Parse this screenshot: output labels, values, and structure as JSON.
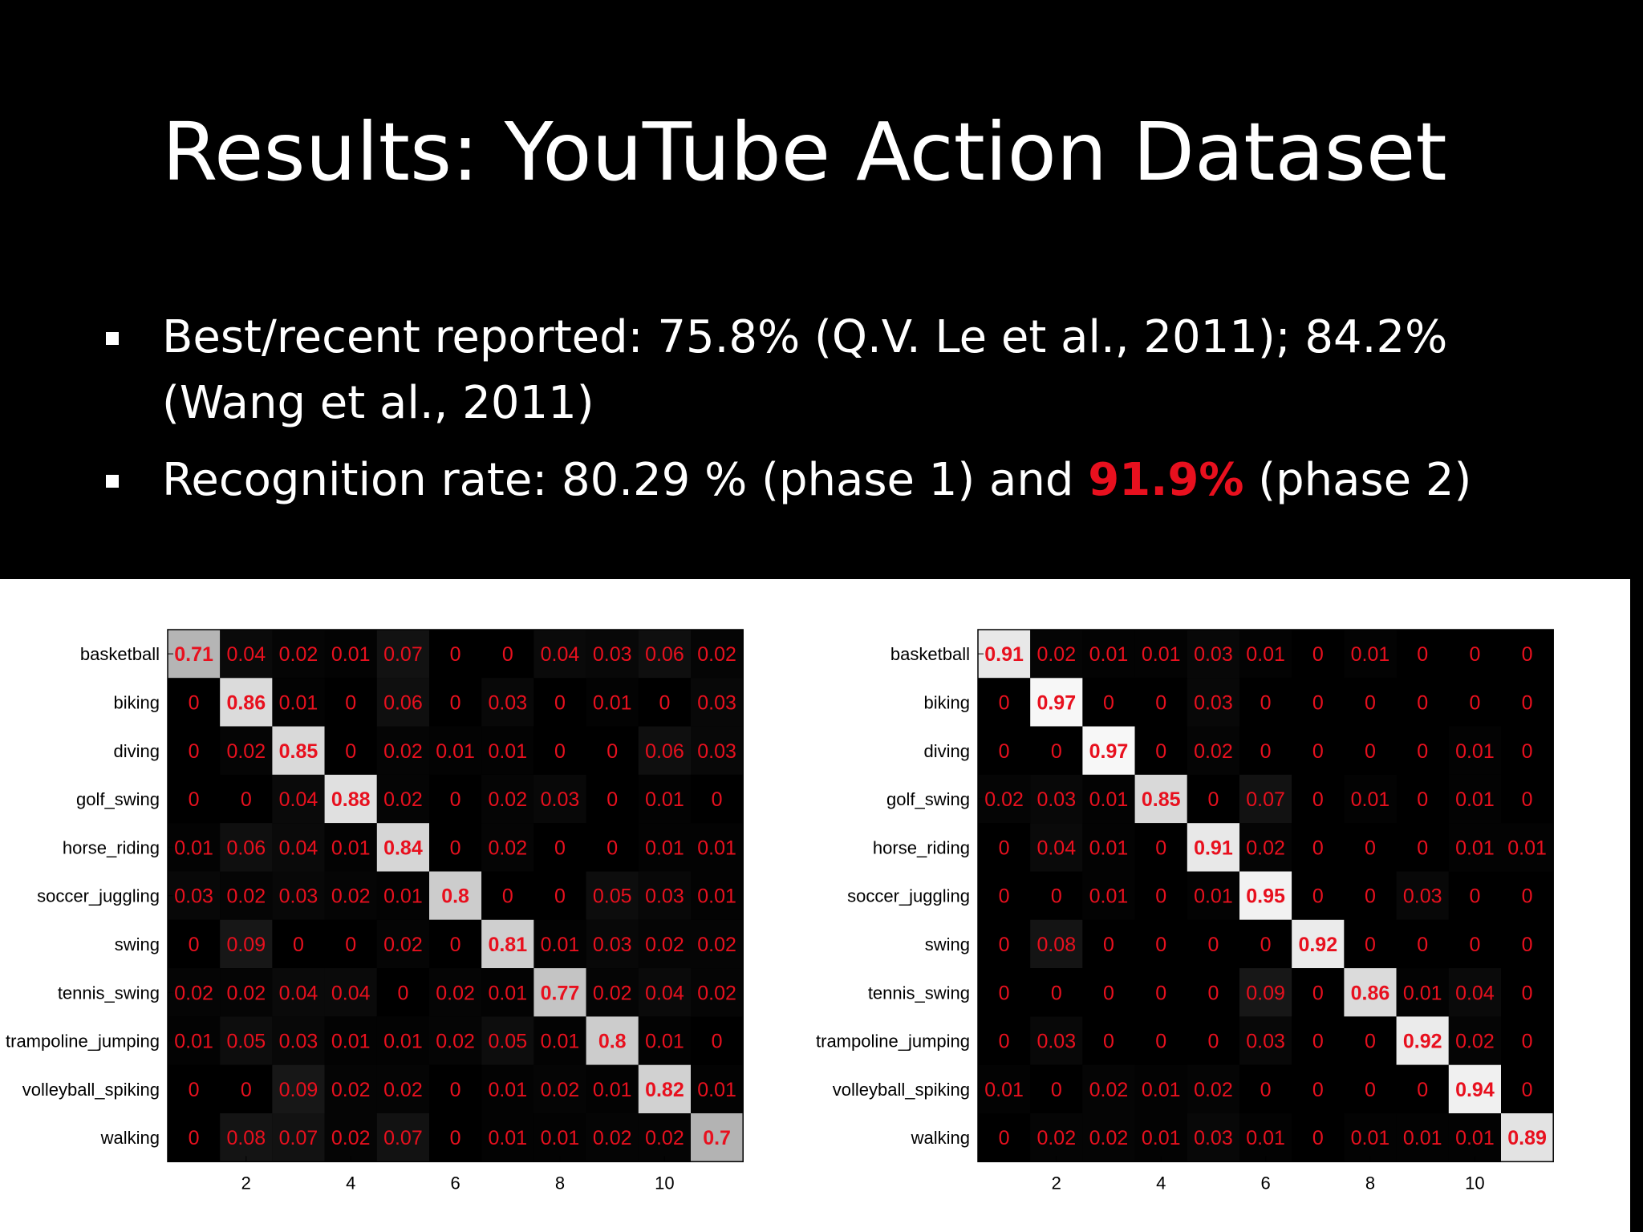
{
  "slide": {
    "title": "Results: YouTube Action Dataset",
    "bullets": [
      {
        "text": "Best/recent reported: 75.8% (Q.V. Le et al., 2011); 84.2% (Wang et al., 2011)"
      },
      {
        "prefix": "Recognition rate: 80.29 % (phase 1) and ",
        "highlight": "91.9%",
        "suffix": " (phase 2)"
      }
    ]
  },
  "colors": {
    "text": "#e8101e",
    "background": "#000000",
    "highlight": "#e8101e"
  },
  "chart_data": [
    {
      "type": "heatmap",
      "y_categories": [
        "basketball",
        "biking",
        "diving",
        "golf_swing",
        "horse_riding",
        "soccer_juggling",
        "swing",
        "tennis_swing",
        "trampoline_jumping",
        "volleyball_spiking",
        "walking"
      ],
      "x_ticks": [
        2,
        4,
        6,
        8,
        10
      ],
      "values": [
        [
          0.71,
          0.04,
          0.02,
          0.01,
          0.07,
          0,
          0,
          0.04,
          0.03,
          0.06,
          0.02
        ],
        [
          0,
          0.86,
          0.01,
          0,
          0.06,
          0,
          0.03,
          0,
          0.01,
          0,
          0.03
        ],
        [
          0,
          0.02,
          0.85,
          0,
          0.02,
          0.01,
          0.01,
          0,
          0,
          0.06,
          0.03
        ],
        [
          0,
          0,
          0.04,
          0.88,
          0.02,
          0,
          0.02,
          0.03,
          0,
          0.01,
          0
        ],
        [
          0.01,
          0.06,
          0.04,
          0.01,
          0.84,
          0,
          0.02,
          0,
          0,
          0.01,
          0.01
        ],
        [
          0.03,
          0.02,
          0.03,
          0.02,
          0.01,
          0.8,
          0,
          0,
          0.05,
          0.03,
          0.01
        ],
        [
          0,
          0.09,
          0,
          0,
          0.02,
          0,
          0.81,
          0.01,
          0.03,
          0.02,
          0.02
        ],
        [
          0.02,
          0.02,
          0.04,
          0.04,
          0,
          0.02,
          0.01,
          0.77,
          0.02,
          0.04,
          0.02
        ],
        [
          0.01,
          0.05,
          0.03,
          0.01,
          0.01,
          0.02,
          0.05,
          0.01,
          0.8,
          0.01,
          0
        ],
        [
          0,
          0,
          0.09,
          0.02,
          0.02,
          0,
          0.01,
          0.02,
          0.01,
          0.82,
          0.01
        ],
        [
          0,
          0.08,
          0.07,
          0.02,
          0.07,
          0,
          0.01,
          0.01,
          0.02,
          0.02,
          0.7
        ]
      ]
    },
    {
      "type": "heatmap",
      "y_categories": [
        "basketball",
        "biking",
        "diving",
        "golf_swing",
        "horse_riding",
        "soccer_juggling",
        "swing",
        "tennis_swing",
        "trampoline_jumping",
        "volleyball_spiking",
        "walking"
      ],
      "x_ticks": [
        2,
        4,
        6,
        8,
        10
      ],
      "values": [
        [
          0.91,
          0.02,
          0.01,
          0.01,
          0.03,
          0.01,
          0,
          0.01,
          0,
          0,
          0
        ],
        [
          0,
          0.97,
          0,
          0,
          0.03,
          0,
          0,
          0,
          0,
          0,
          0
        ],
        [
          0,
          0,
          0.97,
          0,
          0.02,
          0,
          0,
          0,
          0,
          0.01,
          0
        ],
        [
          0.02,
          0.03,
          0.01,
          0.85,
          0,
          0.07,
          0,
          0.01,
          0,
          0.01,
          0
        ],
        [
          0,
          0.04,
          0.01,
          0,
          0.91,
          0.02,
          0,
          0,
          0,
          0.01,
          0.01
        ],
        [
          0,
          0,
          0.01,
          0,
          0.01,
          0.95,
          0,
          0,
          0.03,
          0,
          0
        ],
        [
          0,
          0.08,
          0,
          0,
          0,
          0,
          0.92,
          0,
          0,
          0,
          0
        ],
        [
          0,
          0,
          0,
          0,
          0,
          0.09,
          0,
          0.86,
          0.01,
          0.04,
          0
        ],
        [
          0,
          0.03,
          0,
          0,
          0,
          0.03,
          0,
          0,
          0.92,
          0.02,
          0
        ],
        [
          0.01,
          0,
          0.02,
          0.01,
          0.02,
          0,
          0,
          0,
          0,
          0.94,
          0
        ],
        [
          0,
          0.02,
          0.02,
          0.01,
          0.03,
          0.01,
          0,
          0.01,
          0.01,
          0.01,
          0.89
        ]
      ]
    }
  ]
}
